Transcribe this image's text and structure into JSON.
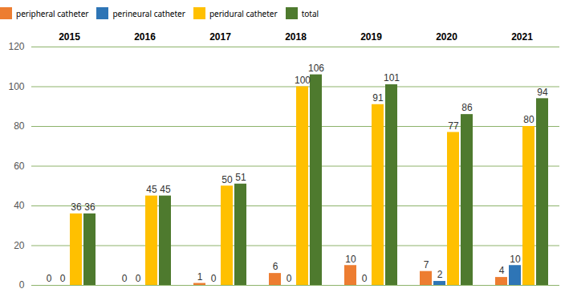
{
  "chart_data": {
    "type": "bar",
    "categories": [
      "2015",
      "2016",
      "2017",
      "2018",
      "2019",
      "2020",
      "2021"
    ],
    "series": [
      {
        "name": "peripheral catheter",
        "color": "#ed7d31",
        "values": [
          0,
          0,
          1,
          6,
          10,
          7,
          4
        ]
      },
      {
        "name": "perineural catheter",
        "color": "#2e75b6",
        "values": [
          0,
          0,
          0,
          0,
          0,
          2,
          10
        ]
      },
      {
        "name": "peridural catheter",
        "color": "#ffc000",
        "values": [
          36,
          45,
          50,
          100,
          91,
          77,
          80
        ]
      },
      {
        "name": "total",
        "color": "#4e7a2e",
        "values": [
          36,
          45,
          51,
          106,
          101,
          86,
          94
        ]
      }
    ],
    "ylim": [
      0,
      120
    ],
    "yticks": [
      0,
      20,
      40,
      60,
      80,
      100,
      120
    ],
    "grid": true,
    "legend": "top",
    "data_labels": true
  }
}
